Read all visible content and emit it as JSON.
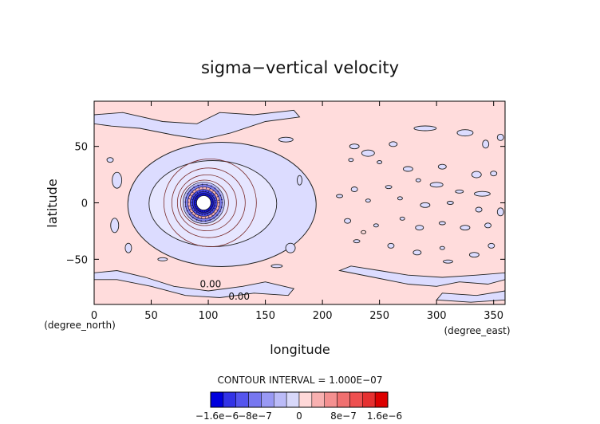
{
  "chart_data": {
    "type": "heatmap",
    "title": "sigma−vertical velocity",
    "xlabel": "longitude",
    "ylabel": "latitude",
    "x_unit_label": "(degree_east)",
    "y_unit_label": "(degree_north)",
    "xlim": [
      0,
      360
    ],
    "ylim": [
      -90,
      90
    ],
    "x_ticks": [
      0,
      50,
      100,
      150,
      200,
      250,
      300,
      350
    ],
    "y_ticks": [
      -50,
      0,
      50
    ],
    "contour_interval_text": "CONTOUR INTERVAL = 1.000E−07",
    "contour_labels": [
      {
        "text": "0.00",
        "lon": 102,
        "lat": -72
      },
      {
        "text": "0.00",
        "lon": 127,
        "lat": -83
      }
    ],
    "colorbar": {
      "min": -1.6e-06,
      "max": 1.6e-06,
      "tick_labels": [
        "−1.6e−6",
        "−8e−7",
        "0",
        "8e−7",
        "1.6e−6"
      ],
      "tick_values": [
        -1.6e-06,
        -8e-07,
        0,
        8e-07,
        1.6e-06
      ],
      "colors": [
        "#0000dd",
        "#3333e6",
        "#5555ee",
        "#7777f0",
        "#9999f4",
        "#bbbbf8",
        "#d8d8fa",
        "#ffd8d8",
        "#f8b0b0",
        "#f49090",
        "#f07070",
        "#ee5050",
        "#e63030",
        "#dd0000"
      ]
    },
    "vortex_center": {
      "lon": 96,
      "lat": 0
    },
    "colors": {
      "positive": "#ffdcdc",
      "negative": "#dcdcff",
      "contour": "#222222",
      "inner_contour": "#7a2a2a"
    }
  }
}
